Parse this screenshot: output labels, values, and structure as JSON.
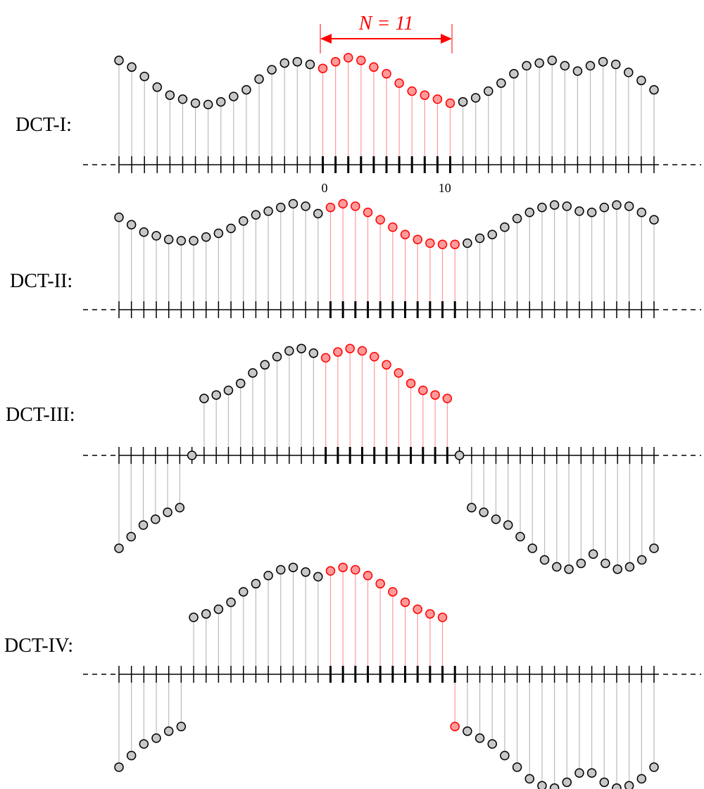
{
  "header": {
    "n_label": "N = 11"
  },
  "axis": {
    "tick_label_zero": "0",
    "tick_label_ten": "10"
  },
  "rows": [
    {
      "id": "dct1",
      "label": "DCT-I:",
      "samples": [
        0.78,
        0.73,
        0.66,
        0.58,
        0.52,
        0.49,
        0.46,
        0.45,
        0.47,
        0.51,
        0.56,
        0.64,
        0.71,
        0.76,
        0.77,
        0.75,
        0.72,
        0.77,
        0.8,
        0.78,
        0.73,
        0.68,
        0.61,
        0.55,
        0.52,
        0.49,
        0.46,
        0.47,
        0.5,
        0.55,
        0.61,
        0.68,
        0.74,
        0.76,
        0.78,
        0.74,
        0.7,
        0.74,
        0.77,
        0.75,
        0.69,
        0.63,
        0.56
      ]
    },
    {
      "id": "dct2",
      "label": "DCT-II:",
      "samples": [
        0.75,
        0.69,
        0.63,
        0.6,
        0.57,
        0.56,
        0.56,
        0.59,
        0.62,
        0.66,
        0.72,
        0.77,
        0.8,
        0.83,
        0.86,
        0.84,
        0.78,
        0.83,
        0.86,
        0.84,
        0.79,
        0.73,
        0.67,
        0.61,
        0.57,
        0.54,
        0.53,
        0.53,
        0.54,
        0.58,
        0.61,
        0.67,
        0.74,
        0.79,
        0.83,
        0.85,
        0.84,
        0.8,
        0.79,
        0.83,
        0.85,
        0.84,
        0.79,
        0.73
      ]
    },
    {
      "id": "dct3",
      "label": "DCT-III:",
      "samples": [
        -0.8,
        -0.7,
        -0.6,
        -0.55,
        -0.49,
        -0.45,
        0.0,
        0.49,
        0.52,
        0.56,
        0.62,
        0.71,
        0.78,
        0.85,
        0.9,
        0.92,
        0.88,
        0.84,
        0.89,
        0.92,
        0.9,
        0.85,
        0.78,
        0.71,
        0.62,
        0.56,
        0.52,
        0.49,
        0.0,
        -0.45,
        -0.49,
        -0.55,
        -0.6,
        -0.7,
        -0.8,
        -0.9,
        -0.96,
        -0.98,
        -0.93,
        -0.85,
        -0.93,
        -0.98,
        -0.96,
        -0.9,
        -0.8
      ]
    },
    {
      "id": "dct4",
      "label": "DCT-IV:",
      "samples": [
        -0.8,
        -0.7,
        -0.6,
        -0.55,
        -0.49,
        -0.45,
        0.49,
        0.52,
        0.56,
        0.62,
        0.71,
        0.78,
        0.85,
        0.9,
        0.92,
        0.88,
        0.84,
        0.89,
        0.92,
        0.9,
        0.85,
        0.78,
        0.71,
        0.62,
        0.56,
        0.52,
        0.49,
        -0.45,
        -0.49,
        -0.55,
        -0.6,
        -0.7,
        -0.8,
        -0.9,
        -0.96,
        -0.98,
        -0.93,
        -0.85,
        -0.85,
        -0.93,
        -0.98,
        -0.96,
        -0.9,
        -0.8
      ]
    }
  ],
  "colors": {
    "axis": "#000000",
    "gray_stem": "#bbbbbb",
    "gray_fill": "#c8c8c8",
    "gray_stroke": "#000000",
    "red_stem": "#ff9999",
    "red_fill": "#ff9a9a",
    "red_stroke": "#ff0000",
    "annotation": "#ff0000"
  }
}
